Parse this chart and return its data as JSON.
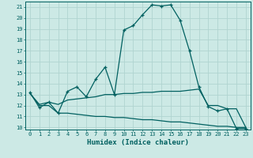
{
  "xlabel": "Humidex (Indice chaleur)",
  "bg_color": "#cce9e5",
  "grid_color": "#b0d4d0",
  "line_color": "#006060",
  "xlim": [
    -0.5,
    23.5
  ],
  "ylim": [
    9.8,
    21.5
  ],
  "yticks": [
    10,
    11,
    12,
    13,
    14,
    15,
    16,
    17,
    18,
    19,
    20,
    21
  ],
  "xticks": [
    0,
    1,
    2,
    3,
    4,
    5,
    6,
    7,
    8,
    9,
    10,
    11,
    12,
    13,
    14,
    15,
    16,
    17,
    18,
    19,
    20,
    21,
    22,
    23
  ],
  "line1_x": [
    0,
    1,
    2,
    3,
    4,
    5,
    6,
    7,
    8,
    9,
    10,
    11,
    12,
    13,
    14,
    15,
    16,
    17,
    18,
    19,
    20,
    21,
    22,
    23
  ],
  "line1_y": [
    13.2,
    11.8,
    12.3,
    11.3,
    13.3,
    13.7,
    12.8,
    14.4,
    15.5,
    13.0,
    18.9,
    19.3,
    20.3,
    21.2,
    21.1,
    21.2,
    19.8,
    17.0,
    13.7,
    11.9,
    11.5,
    11.7,
    9.9,
    9.9
  ],
  "line2_x": [
    0,
    1,
    2,
    3,
    4,
    5,
    6,
    7,
    8,
    9,
    10,
    11,
    12,
    13,
    14,
    15,
    16,
    17,
    18,
    19,
    20,
    21,
    22,
    23
  ],
  "line2_y": [
    13.1,
    12.1,
    12.3,
    12.1,
    12.5,
    12.6,
    12.7,
    12.8,
    13.0,
    13.0,
    13.1,
    13.1,
    13.2,
    13.2,
    13.3,
    13.3,
    13.3,
    13.4,
    13.5,
    12.0,
    12.0,
    11.7,
    11.7,
    10.0
  ],
  "line3_x": [
    0,
    1,
    2,
    3,
    4,
    5,
    6,
    7,
    8,
    9,
    10,
    11,
    12,
    13,
    14,
    15,
    16,
    17,
    18,
    19,
    20,
    21,
    22,
    23
  ],
  "line3_y": [
    13.1,
    12.0,
    12.0,
    11.3,
    11.3,
    11.2,
    11.1,
    11.0,
    11.0,
    10.9,
    10.9,
    10.8,
    10.7,
    10.7,
    10.6,
    10.5,
    10.5,
    10.4,
    10.3,
    10.2,
    10.1,
    10.1,
    10.0,
    10.0
  ]
}
